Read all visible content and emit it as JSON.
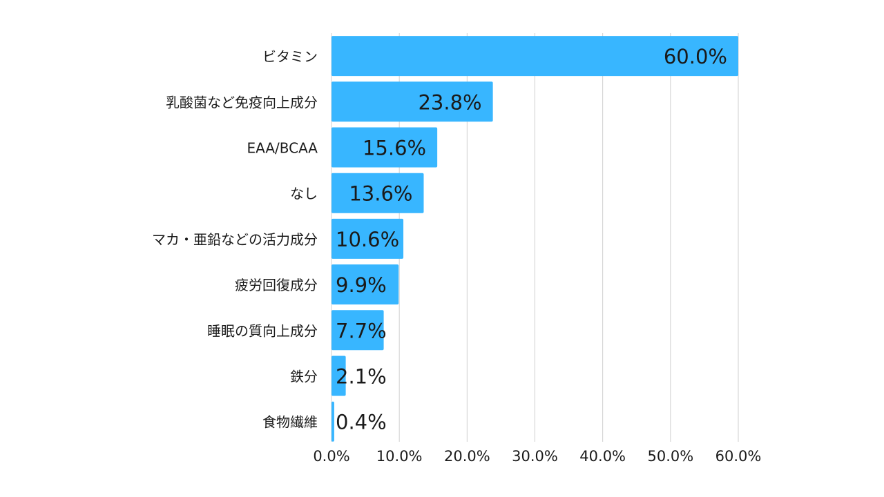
{
  "chart_data": {
    "type": "bar",
    "orientation": "horizontal",
    "categories": [
      "ビタミン",
      "乳酸菌など免疫向上成分",
      "EAA/BCAA",
      "なし",
      "マカ・亜鉛などの活力成分",
      "疲労回復成分",
      "睡眠の質向上成分",
      "鉄分",
      "食物繊維"
    ],
    "values": [
      60.0,
      23.8,
      15.6,
      13.6,
      10.6,
      9.9,
      7.7,
      2.1,
      0.4
    ],
    "value_labels": [
      "60.0%",
      "23.8%",
      "15.6%",
      "13.6%",
      "10.6%",
      "9.9%",
      "7.7%",
      "2.1%",
      "0.4%"
    ],
    "xlim": [
      0,
      60
    ],
    "x_ticks": [
      0,
      10,
      20,
      30,
      40,
      50,
      60
    ],
    "x_tick_labels": [
      "0.0%",
      "10.0%",
      "20.0%",
      "30.0%",
      "40.0%",
      "50.0%",
      "60.0%"
    ],
    "grid": "vertical",
    "legend": "none"
  },
  "colors": {
    "bar": "#38b6ff",
    "grid": "#cfcfcf",
    "text": "#1a1a1a"
  }
}
